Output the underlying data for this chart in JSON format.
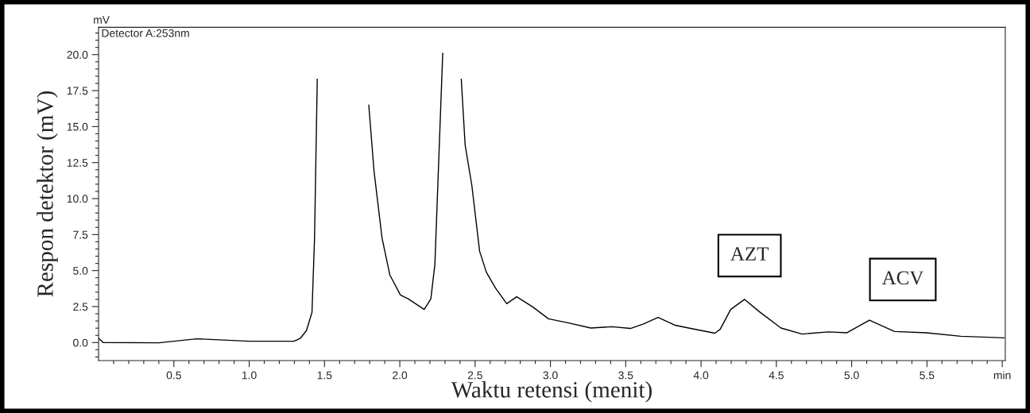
{
  "chart_data": {
    "type": "line",
    "xlabel": "Waktu retensi (menit)",
    "ylabel": "Respon detektor (mV)",
    "annotations": [
      "mV",
      "Detector A:253nm",
      "AZT",
      "ACV"
    ],
    "series": [
      {
        "color": "#000000",
        "x": [
          0.0,
          0.03,
          0.4,
          0.65,
          1.0,
          1.3,
          1.338,
          1.38,
          1.417,
          1.434,
          1.452,
          1.46,
          1.6,
          1.768,
          1.794,
          1.829,
          1.882,
          1.934,
          2.004,
          2.057,
          2.162,
          2.206,
          2.233,
          2.259,
          2.285,
          2.29,
          2.34,
          2.39,
          2.408,
          2.434,
          2.478,
          2.53,
          2.575,
          2.636,
          2.71,
          2.776,
          2.882,
          2.987,
          3.127,
          3.268,
          3.408,
          3.531,
          3.618,
          3.715,
          3.829,
          3.917,
          4.092,
          4.127,
          4.197,
          4.289,
          4.39,
          4.531,
          4.671,
          4.846,
          4.969,
          5.118,
          5.285,
          5.496,
          5.724,
          6.013
        ],
        "values": [
          0.3,
          0.0,
          -0.02,
          0.26,
          0.09,
          0.1,
          0.28,
          0.83,
          2.1,
          7.3,
          18.3,
          null,
          null,
          null,
          16.5,
          11.9,
          7.26,
          4.69,
          3.31,
          3.03,
          2.3,
          3.03,
          5.43,
          12.78,
          20.1,
          null,
          null,
          null,
          18.3,
          13.7,
          10.94,
          6.34,
          4.88,
          3.77,
          2.7,
          3.18,
          2.48,
          1.65,
          1.35,
          1.01,
          1.1,
          0.98,
          1.29,
          1.75,
          1.2,
          1.01,
          0.65,
          0.92,
          2.3,
          3.0,
          2.12,
          1.01,
          0.59,
          0.74,
          0.68,
          1.56,
          0.77,
          0.68,
          0.44,
          0.33
        ]
      }
    ],
    "xlim": [
      0,
      6.02
    ],
    "ylim": [
      -1.25,
      21.9
    ],
    "xticks": [
      {
        "value": 0.1,
        "label": null
      },
      {
        "value": 0.2,
        "label": null
      },
      {
        "value": 0.3,
        "label": null
      },
      {
        "value": 0.4,
        "label": null
      },
      0.5,
      {
        "value": 0.6,
        "label": null
      },
      {
        "value": 0.7,
        "label": null
      },
      {
        "value": 0.8,
        "label": null
      },
      {
        "value": 0.9,
        "label": null
      },
      {
        "value": 1.0,
        "label": "1.0"
      },
      {
        "value": 1.1,
        "label": null
      },
      {
        "value": 1.2,
        "label": null
      },
      {
        "value": 1.3,
        "label": null
      },
      {
        "value": 1.4,
        "label": null
      },
      1.5,
      {
        "value": 1.6,
        "label": null
      },
      {
        "value": 1.7,
        "label": null
      },
      {
        "value": 1.8,
        "label": null
      },
      {
        "value": 1.9,
        "label": null
      },
      {
        "value": 2.0,
        "label": "2.0"
      },
      {
        "value": 2.1,
        "label": null
      },
      {
        "value": 2.2,
        "label": null
      },
      {
        "value": 2.3,
        "label": null
      },
      {
        "value": 2.4,
        "label": null
      },
      2.5,
      {
        "value": 2.6,
        "label": null
      },
      {
        "value": 2.7,
        "label": null
      },
      {
        "value": 2.8,
        "label": null
      },
      {
        "value": 2.9,
        "label": null
      },
      {
        "value": 3.0,
        "label": "3.0"
      },
      {
        "value": 3.1,
        "label": null
      },
      {
        "value": 3.2,
        "label": null
      },
      {
        "value": 3.3,
        "label": null
      },
      {
        "value": 3.4,
        "label": null
      },
      3.5,
      {
        "value": 3.6,
        "label": null
      },
      {
        "value": 3.7,
        "label": null
      },
      {
        "value": 3.8,
        "label": null
      },
      {
        "value": 3.9,
        "label": null
      },
      {
        "value": 4.0,
        "label": "4.0"
      },
      {
        "value": 4.1,
        "label": null
      },
      {
        "value": 4.2,
        "label": null
      },
      {
        "value": 4.3,
        "label": null
      },
      {
        "value": 4.4,
        "label": null
      },
      4.5,
      {
        "value": 4.6,
        "label": null
      },
      {
        "value": 4.7,
        "label": null
      },
      {
        "value": 4.8,
        "label": null
      },
      {
        "value": 4.9,
        "label": null
      },
      {
        "value": 5.0,
        "label": "5.0"
      },
      {
        "value": 5.1,
        "label": null
      },
      {
        "value": 5.2,
        "label": null
      },
      {
        "value": 5.3,
        "label": null
      },
      {
        "value": 5.4,
        "label": null
      },
      5.5,
      {
        "value": 5.6,
        "label": null
      },
      {
        "value": 5.7,
        "label": null
      },
      {
        "value": 5.8,
        "label": null
      },
      {
        "value": 5.9,
        "label": null
      },
      {
        "value": 6.0,
        "label": "min"
      }
    ],
    "yticks": [
      {
        "value": -1.0,
        "label": null
      },
      {
        "value": -0.5,
        "label": null
      },
      {
        "value": 0,
        "label": "0.0"
      },
      {
        "value": 0.5,
        "label": null
      },
      {
        "value": 1.0,
        "label": null
      },
      {
        "value": 1.5,
        "label": null
      },
      {
        "value": 2.0,
        "label": null
      },
      2.5,
      {
        "value": 3.0,
        "label": null
      },
      {
        "value": 3.5,
        "label": null
      },
      {
        "value": 4.0,
        "label": null
      },
      {
        "value": 4.5,
        "label": null
      },
      {
        "value": 5,
        "label": "5.0"
      },
      {
        "value": 5.5,
        "label": null
      },
      {
        "value": 6.0,
        "label": null
      },
      {
        "value": 6.5,
        "label": null
      },
      {
        "value": 7.0,
        "label": null
      },
      7.5,
      {
        "value": 8.0,
        "label": null
      },
      {
        "value": 8.5,
        "label": null
      },
      {
        "value": 9.0,
        "label": null
      },
      {
        "value": 9.5,
        "label": null
      },
      {
        "value": 10,
        "label": "10.0"
      },
      {
        "value": 10.5,
        "label": null
      },
      {
        "value": 11.0,
        "label": null
      },
      {
        "value": 11.5,
        "label": null
      },
      {
        "value": 12.0,
        "label": null
      },
      12.5,
      {
        "value": 13.0,
        "label": null
      },
      {
        "value": 13.5,
        "label": null
      },
      {
        "value": 14.0,
        "label": null
      },
      {
        "value": 14.5,
        "label": null
      },
      {
        "value": 15,
        "label": "15.0"
      },
      {
        "value": 15.5,
        "label": null
      },
      {
        "value": 16.0,
        "label": null
      },
      {
        "value": 16.5,
        "label": null
      },
      {
        "value": 17.0,
        "label": null
      },
      17.5,
      {
        "value": 18.0,
        "label": null
      },
      {
        "value": 18.5,
        "label": null
      },
      {
        "value": 19.0,
        "label": null
      },
      {
        "value": 19.5,
        "label": null
      },
      {
        "value": 20,
        "label": "20.0"
      },
      {
        "value": 20.5,
        "label": null
      },
      {
        "value": 21.0,
        "label": null
      },
      {
        "value": 21.5,
        "label": null
      }
    ],
    "grid": false,
    "legend": false
  }
}
